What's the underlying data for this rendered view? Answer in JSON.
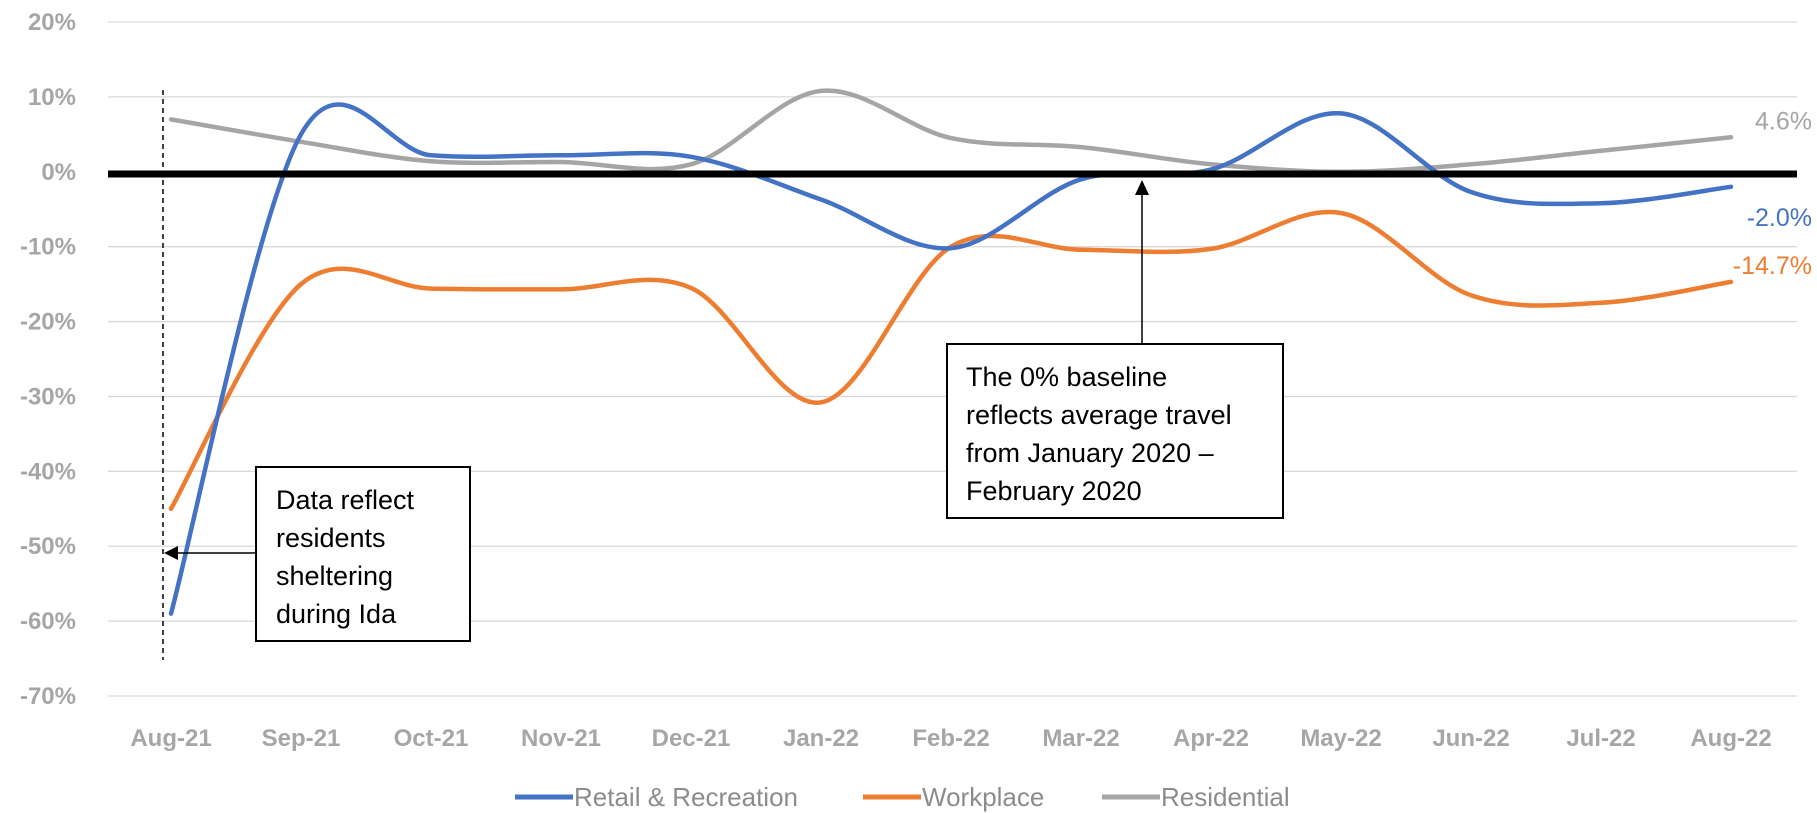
{
  "chart_data": {
    "type": "line",
    "categories": [
      "Aug-21",
      "Sep-21",
      "Oct-21",
      "Nov-21",
      "Dec-21",
      "Jan-22",
      "Feb-22",
      "Mar-22",
      "Apr-22",
      "May-22",
      "Jun-22",
      "Jul-22",
      "Aug-22"
    ],
    "ylim": [
      -70,
      20
    ],
    "yticks": [
      "20%",
      "10%",
      "0%",
      "-10%",
      "-20%",
      "-30%",
      "-40%",
      "-50%",
      "-60%",
      "-70%"
    ],
    "grid": true,
    "legend_position": "bottom",
    "series": [
      {
        "name": "Retail & Recreation",
        "color": "#4472c4",
        "values": [
          -59.0,
          5.0,
          2.2,
          2.2,
          2.0,
          -3.7,
          -10.2,
          -1.0,
          0.3,
          7.8,
          -2.7,
          -4.2,
          -2.0
        ],
        "end_label": "-2.0%"
      },
      {
        "name": "Workplace",
        "color": "#ed7d31",
        "values": [
          -45.0,
          -15.0,
          -15.6,
          -15.7,
          -15.5,
          -30.8,
          -10.0,
          -10.4,
          -10.3,
          -5.5,
          -16.5,
          -17.5,
          -14.7
        ],
        "end_label": "-14.7%"
      },
      {
        "name": "Residential",
        "color": "#a5a5a5",
        "values": [
          7.0,
          4.0,
          1.4,
          1.3,
          1.0,
          10.8,
          4.5,
          3.3,
          1.0,
          0.0,
          1.0,
          2.8,
          4.6
        ],
        "end_label": "4.6%"
      }
    ],
    "annotations": [
      {
        "id": "ida",
        "lines": [
          "Data reflect",
          "residents",
          "sheltering",
          "during Ida"
        ]
      },
      {
        "id": "baseline",
        "lines": [
          "The 0% baseline",
          "reflects average travel",
          "from January 2020 –",
          "February 2020"
        ]
      }
    ]
  }
}
